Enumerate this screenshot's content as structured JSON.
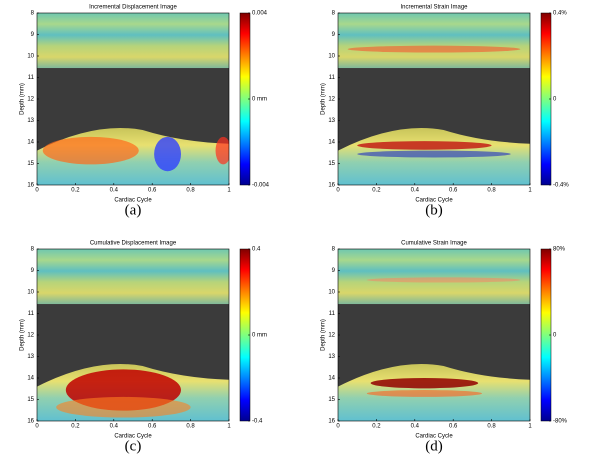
{
  "chart_data": [
    {
      "type": "heatmap",
      "title": "Incremental Displacement Image",
      "xlabel": "Cardiac Cycle",
      "ylabel": "Depth (mm)",
      "xlim": [
        0,
        1
      ],
      "xticks": [
        0,
        0.2,
        0.4,
        0.6,
        0.8,
        1
      ],
      "ylim": [
        8,
        16
      ],
      "yticks": [
        8,
        9,
        10,
        11,
        12,
        13,
        14,
        15,
        16
      ],
      "y_inverted": true,
      "colorbar_lim": [
        -0.004,
        0.004
      ],
      "colorbar_ticks": [
        0.004,
        {
          "value": 0,
          "label": "0 mm"
        },
        -0.004
      ],
      "colormap": "jet",
      "caption": "(a)"
    },
    {
      "type": "heatmap",
      "title": "Incremental Strain Image",
      "xlabel": "Cardiac Cycle",
      "ylabel": "Depth (mm)",
      "xlim": [
        0,
        1
      ],
      "xticks": [
        0,
        0.2,
        0.4,
        0.6,
        0.8,
        1
      ],
      "ylim": [
        8,
        16
      ],
      "yticks": [
        8,
        9,
        10,
        11,
        12,
        13,
        14,
        15,
        16
      ],
      "y_inverted": true,
      "colorbar_lim": [
        -0.4,
        0.4
      ],
      "colorbar_ticks": [
        {
          "value": 0.4,
          "label": "0.4%"
        },
        0,
        {
          "value": -0.4,
          "label": "-0.4%"
        }
      ],
      "colormap": "jet",
      "caption": "(b)"
    },
    {
      "type": "heatmap",
      "title": "Cumulative Displacement Image",
      "xlabel": "Cardiac Cycle",
      "ylabel": "Depth (mm)",
      "xlim": [
        0,
        1
      ],
      "xticks": [
        0,
        0.2,
        0.4,
        0.6,
        0.8,
        1
      ],
      "ylim": [
        8,
        16
      ],
      "yticks": [
        8,
        9,
        10,
        11,
        12,
        13,
        14,
        15,
        16
      ],
      "y_inverted": true,
      "colorbar_lim": [
        -0.4,
        0.4
      ],
      "colorbar_ticks": [
        0.4,
        {
          "value": 0,
          "label": "0 mm"
        },
        -0.4
      ],
      "colormap": "jet",
      "caption": "(c)"
    },
    {
      "type": "heatmap",
      "title": "Cumulative Strain Image",
      "xlabel": "Cardiac Cycle",
      "ylabel": "Depth (mm)",
      "xlim": [
        0,
        1
      ],
      "xticks": [
        0,
        0.2,
        0.4,
        0.6,
        0.8,
        1
      ],
      "ylim": [
        8,
        16
      ],
      "yticks": [
        8,
        9,
        10,
        11,
        12,
        13,
        14,
        15,
        16
      ],
      "y_inverted": true,
      "colorbar_lim": [
        -80,
        80
      ],
      "colorbar_ticks": [
        {
          "value": 80,
          "label": "80%"
        },
        0,
        {
          "value": -80,
          "label": "-80%"
        }
      ],
      "colormap": "jet",
      "caption": "(d)"
    }
  ]
}
